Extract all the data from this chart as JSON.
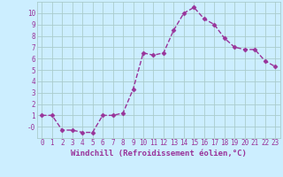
{
  "x": [
    0,
    1,
    2,
    3,
    4,
    5,
    6,
    7,
    8,
    9,
    10,
    11,
    12,
    13,
    14,
    15,
    16,
    17,
    18,
    19,
    20,
    21,
    22,
    23
  ],
  "y": [
    1,
    1,
    -0.3,
    -0.3,
    -0.5,
    -0.5,
    1,
    1,
    1.2,
    3.3,
    6.5,
    6.3,
    6.5,
    8.5,
    10,
    10.5,
    9.5,
    9,
    7.8,
    7,
    6.8,
    6.8,
    5.8,
    5.3
  ],
  "line_color": "#993399",
  "marker": "D",
  "marker_size": 2.5,
  "line_width": 1.0,
  "bg_color": "#cceeff",
  "grid_color": "#aacccc",
  "xlabel": "Windchill (Refroidissement éolien,°C)",
  "xlabel_fontsize": 6.5,
  "xlabel_color": "#993399",
  "xlim": [
    -0.5,
    23.5
  ],
  "ylim": [
    -1.0,
    11.0
  ],
  "yticks": [
    0,
    1,
    2,
    3,
    4,
    5,
    6,
    7,
    8,
    9,
    10
  ],
  "ytick_labels": [
    "-0",
    "1",
    "2",
    "3",
    "4",
    "5",
    "6",
    "7",
    "8",
    "9",
    "10"
  ],
  "xticks": [
    0,
    1,
    2,
    3,
    4,
    5,
    6,
    7,
    8,
    9,
    10,
    11,
    12,
    13,
    14,
    15,
    16,
    17,
    18,
    19,
    20,
    21,
    22,
    23
  ],
  "tick_fontsize": 5.5,
  "tick_color": "#993399"
}
